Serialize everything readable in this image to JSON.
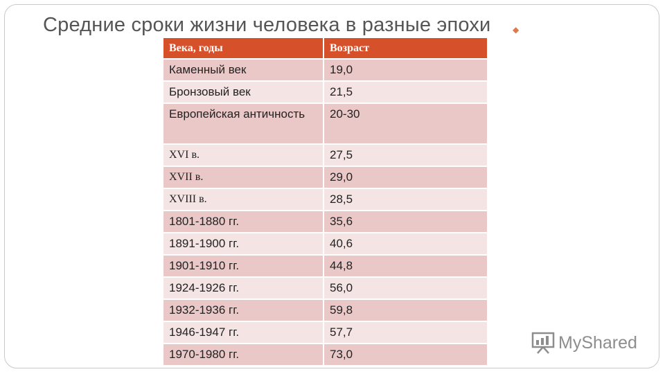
{
  "slide": {
    "title": "Средние сроки жизни человека в разные эпохи"
  },
  "table": {
    "headers": [
      "Века, годы",
      "Возраст"
    ],
    "rows": [
      {
        "era": "Каменный век",
        "age": "19,0"
      },
      {
        "era": "Бронзовый век",
        "age": "21,5"
      },
      {
        "era": "Европейская античность",
        "age": "20-30"
      },
      {
        "era": "XVI в.",
        "age": "27,5"
      },
      {
        "era": "XVII в.",
        "age": "29,0"
      },
      {
        "era": "XVIII в.",
        "age": "28,5"
      },
      {
        "era": "1801-1880 гг.",
        "age": "35,6"
      },
      {
        "era": "1891-1900 гг.",
        "age": "40,6"
      },
      {
        "era": "1901-1910 гг.",
        "age": "44,8"
      },
      {
        "era": "1924-1926 гг.",
        "age": "56,0"
      },
      {
        "era": "1932-1936 гг.",
        "age": "59,8"
      },
      {
        "era": "1946-1947 гг.",
        "age": "57,7"
      },
      {
        "era": "1970-1980 гг.",
        "age": "73,0"
      }
    ]
  },
  "watermark": {
    "text": "MyShared",
    "icon": "presentation-board-icon"
  },
  "colors": {
    "header": "#d6502a",
    "row_odd": "#e9c8c7",
    "row_even": "#f4e4e3",
    "title": "#555555"
  }
}
